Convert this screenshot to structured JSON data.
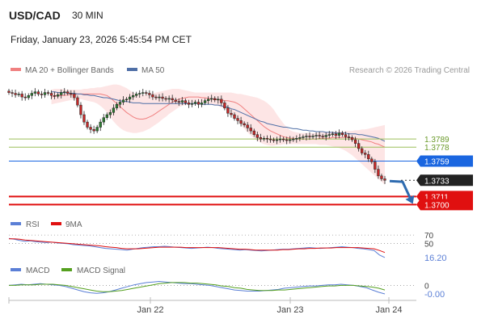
{
  "header": {
    "symbol": "USD/CAD",
    "interval": "30 MIN",
    "datetime": "Friday, January 23, 2026 5:45:54 PM CET"
  },
  "legend": {
    "ma20": "MA 20 + Bollinger Bands",
    "ma50": "MA 50",
    "credit": "Research © 2026 Trading Central",
    "rsi": "RSI",
    "rsi_ma": "9MA",
    "macd": "MACD",
    "macd_signal": "MACD Signal"
  },
  "colors": {
    "candle_up": "#2e7d32",
    "candle_down": "#c62828",
    "ma20": "#f08080",
    "bollinger_fill": "#fde0e0",
    "ma50": "#4f6fa6",
    "support_red": "#e01010",
    "current_blue": "#1a66e0",
    "resistance_green": "#9cbf5a",
    "price_tag_dark": "#222222",
    "rsi": "#5b7fd6",
    "rsi_ma": "#e01010",
    "macd": "#5b7fd6",
    "macd_signal": "#55a020",
    "arrow": "#2e6bb0"
  },
  "chart_data": [
    {
      "type": "candlestick",
      "title": "USD/CAD 30 MIN",
      "x_ticks": [
        "Jan 22",
        "Jan 23",
        "Jan 24"
      ],
      "ylim": [
        1.3695,
        1.3868
      ],
      "closes": [
        1.3852,
        1.3851,
        1.3849,
        1.385,
        1.3846,
        1.3845,
        1.3848,
        1.3851,
        1.3853,
        1.385,
        1.3849,
        1.3852,
        1.3851,
        1.3848,
        1.3847,
        1.3849,
        1.3852,
        1.3853,
        1.3851,
        1.385,
        1.3845,
        1.3835,
        1.3822,
        1.3812,
        1.3805,
        1.3802,
        1.38,
        1.3805,
        1.3812,
        1.3818,
        1.3822,
        1.3825,
        1.3831,
        1.3836,
        1.3839,
        1.3842,
        1.3843,
        1.3846,
        1.3848,
        1.385,
        1.3851,
        1.3852,
        1.3851,
        1.3849,
        1.3846,
        1.3845,
        1.3846,
        1.3844,
        1.3843,
        1.3844,
        1.3842,
        1.384,
        1.3839,
        1.3841,
        1.3838,
        1.3836,
        1.3837,
        1.3839,
        1.3836,
        1.3838,
        1.3841,
        1.3843,
        1.3844,
        1.3842,
        1.3843,
        1.3838,
        1.3831,
        1.3824,
        1.3822,
        1.3817,
        1.3814,
        1.381,
        1.3808,
        1.3804,
        1.38,
        1.3795,
        1.3791,
        1.3789,
        1.379,
        1.3789,
        1.3788,
        1.3787,
        1.3788,
        1.3789,
        1.3788,
        1.3787,
        1.3788,
        1.3789,
        1.379,
        1.3791,
        1.3792,
        1.3793,
        1.3792,
        1.3793,
        1.3794,
        1.3793,
        1.3792,
        1.3794,
        1.3795,
        1.3796,
        1.3794,
        1.3797,
        1.3795,
        1.3792,
        1.3791,
        1.3788,
        1.3783,
        1.3776,
        1.377,
        1.3768,
        1.3762,
        1.3758,
        1.3748,
        1.3739,
        1.3735,
        1.3733
      ],
      "indicators": {
        "ma20": [
          1.3846,
          1.3847,
          1.3848,
          1.3848,
          1.3848,
          1.3849,
          1.3849,
          1.3849,
          1.385,
          1.385,
          1.385,
          1.385,
          1.385,
          1.385,
          1.385,
          1.385,
          1.3849,
          1.3848,
          1.3845,
          1.3841,
          1.3837,
          1.3833,
          1.3829,
          1.3825,
          1.3822,
          1.3819,
          1.3817,
          1.3816,
          1.3816,
          1.3817,
          1.3819,
          1.3821,
          1.3824,
          1.3827,
          1.383,
          1.3833,
          1.3836,
          1.3839,
          1.3841,
          1.3843,
          1.3844,
          1.3845,
          1.3846,
          1.3846,
          1.3846,
          1.3846,
          1.3845,
          1.3845,
          1.3844,
          1.3843,
          1.3843,
          1.3842,
          1.3842,
          1.3841,
          1.3841,
          1.384,
          1.3839,
          1.3837,
          1.3834,
          1.383,
          1.3826,
          1.3822,
          1.3818,
          1.3814,
          1.381,
          1.3806,
          1.3803,
          1.38,
          1.3798,
          1.3796,
          1.3794,
          1.3792,
          1.3791,
          1.379,
          1.379,
          1.3789,
          1.3789,
          1.3789,
          1.3789,
          1.3789,
          1.3789,
          1.3789,
          1.379,
          1.379,
          1.379,
          1.379,
          1.3791,
          1.3791,
          1.3791,
          1.3791,
          1.3791,
          1.3791,
          1.379,
          1.379,
          1.3789,
          1.3788,
          1.3787,
          1.3786,
          1.3785,
          1.3783,
          1.3782,
          1.378,
          1.3778
        ],
        "bollinger_upper": [
          1.3856,
          1.3857,
          1.3857,
          1.3857,
          1.3856,
          1.3856,
          1.3856,
          1.3856,
          1.3856,
          1.3856,
          1.3857,
          1.3857,
          1.3858,
          1.3858,
          1.3859,
          1.3859,
          1.386,
          1.3861,
          1.3862,
          1.3863,
          1.3863,
          1.3862,
          1.386,
          1.3858,
          1.3855,
          1.3852,
          1.385,
          1.3849,
          1.3849,
          1.3849,
          1.385,
          1.3851,
          1.3852,
          1.3853,
          1.3854,
          1.3855,
          1.3856,
          1.3857,
          1.3857,
          1.3857,
          1.3856,
          1.3855,
          1.3854,
          1.3853,
          1.3852,
          1.3852,
          1.3852,
          1.3852,
          1.3852,
          1.3852,
          1.3852,
          1.3852,
          1.3852,
          1.3852,
          1.3852,
          1.3852,
          1.3851,
          1.385,
          1.385,
          1.3849,
          1.3848,
          1.3847,
          1.3846,
          1.3845,
          1.3843,
          1.3841,
          1.3838,
          1.3834,
          1.3829,
          1.3822,
          1.3816,
          1.381,
          1.3805,
          1.3801,
          1.3799,
          1.3798,
          1.3797,
          1.3797,
          1.3797,
          1.3797,
          1.3797,
          1.3797,
          1.3798,
          1.3798,
          1.3798,
          1.3798,
          1.3799,
          1.3799,
          1.3799,
          1.3799,
          1.38,
          1.38,
          1.38,
          1.3801,
          1.3801,
          1.3802,
          1.3802,
          1.3803,
          1.3804,
          1.3805,
          1.3806,
          1.3807,
          1.3808
        ],
        "bollinger_lower": [
          1.3836,
          1.3837,
          1.3838,
          1.3839,
          1.384,
          1.3841,
          1.3842,
          1.3842,
          1.3843,
          1.3843,
          1.3842,
          1.3841,
          1.384,
          1.3839,
          1.3837,
          1.3834,
          1.383,
          1.3825,
          1.3819,
          1.3813,
          1.3808,
          1.3804,
          1.3801,
          1.3799,
          1.3798,
          1.3797,
          1.3797,
          1.3798,
          1.3799,
          1.3801,
          1.3803,
          1.3806,
          1.3809,
          1.3812,
          1.3816,
          1.3819,
          1.3823,
          1.3826,
          1.3829,
          1.3832,
          1.3834,
          1.3835,
          1.3837,
          1.3838,
          1.3839,
          1.3839,
          1.3839,
          1.3838,
          1.3837,
          1.3836,
          1.3835,
          1.3834,
          1.3832,
          1.383,
          1.3827,
          1.3823,
          1.3818,
          1.3813,
          1.3808,
          1.3803,
          1.3798,
          1.3794,
          1.379,
          1.3787,
          1.3784,
          1.3782,
          1.3781,
          1.378,
          1.378,
          1.3781,
          1.3781,
          1.3782,
          1.3782,
          1.3782,
          1.3782,
          1.3782,
          1.3782,
          1.3782,
          1.3782,
          1.3782,
          1.3782,
          1.3782,
          1.3781,
          1.3781,
          1.3781,
          1.378,
          1.3779,
          1.3778,
          1.3777,
          1.3775,
          1.3773,
          1.377,
          1.3767,
          1.3763,
          1.3759,
          1.3755,
          1.3751,
          1.3747,
          1.3743,
          1.3739,
          1.3735,
          1.3731,
          1.3727
        ],
        "ma50": [
          1.3853,
          1.3853,
          1.3852,
          1.3852,
          1.3852,
          1.3851,
          1.3851,
          1.3851,
          1.385,
          1.385,
          1.3849,
          1.3849,
          1.3848,
          1.3848,
          1.3847,
          1.3846,
          1.3845,
          1.3845,
          1.3844,
          1.3843,
          1.3842,
          1.3841,
          1.384,
          1.384,
          1.3839,
          1.3838,
          1.3838,
          1.3838,
          1.3837,
          1.3837,
          1.3837,
          1.3837,
          1.3837,
          1.3837,
          1.3837,
          1.3837,
          1.3837,
          1.3837,
          1.3837,
          1.3837,
          1.3837,
          1.3837,
          1.3837,
          1.3837,
          1.3837,
          1.3837,
          1.3836,
          1.3836,
          1.3836,
          1.3836,
          1.3835,
          1.3835,
          1.3834,
          1.3833,
          1.3832,
          1.383,
          1.3829,
          1.3827,
          1.3825,
          1.3823,
          1.3821,
          1.3819,
          1.3817,
          1.3815,
          1.3813,
          1.3812,
          1.381,
          1.3809,
          1.3808,
          1.3807,
          1.3806,
          1.3805,
          1.3805,
          1.3804,
          1.3803,
          1.3803,
          1.3802,
          1.3801,
          1.3801,
          1.38,
          1.38,
          1.3799,
          1.3799,
          1.3799,
          1.3798,
          1.3798,
          1.3798,
          1.3797,
          1.3797,
          1.3797,
          1.3797,
          1.3796,
          1.3796,
          1.3796,
          1.3795,
          1.3795,
          1.3794,
          1.3793,
          1.3792,
          1.3791,
          1.379,
          1.3788,
          1.3786
        ]
      },
      "levels": [
        {
          "value": 1.3789,
          "label": "1.3789",
          "kind": "resistance"
        },
        {
          "value": 1.3778,
          "label": "1.3778",
          "kind": "resistance"
        },
        {
          "value": 1.3759,
          "label": "1.3759",
          "kind": "pivot"
        },
        {
          "value": 1.3733,
          "label": "1.3733",
          "kind": "last"
        },
        {
          "value": 1.3711,
          "label": "1.3711",
          "kind": "support"
        },
        {
          "value": 1.37,
          "label": "1.3700",
          "kind": "support"
        }
      ],
      "forecast_arrow": {
        "from": 1.3733,
        "to": 1.3705,
        "direction": "down"
      }
    },
    {
      "type": "line",
      "title": "RSI",
      "ylim": [
        10,
        80
      ],
      "reference_levels": [
        {
          "value": 70,
          "label": "70"
        },
        {
          "value": 50,
          "label": "50"
        }
      ],
      "last_value_label": "16.20",
      "series": [
        {
          "name": "RSI",
          "values": [
            62,
            60,
            57,
            55,
            56,
            54,
            53,
            52,
            53,
            51,
            50,
            49,
            47,
            46,
            45,
            44,
            42,
            40,
            38,
            37,
            36,
            35,
            34,
            36,
            38,
            40,
            41,
            42,
            42,
            43,
            42,
            41,
            40,
            39,
            38,
            39,
            40,
            41,
            40,
            38,
            37,
            36,
            35,
            34,
            35,
            34,
            33,
            32,
            33,
            34,
            35,
            36,
            36,
            37,
            38,
            39,
            40,
            39,
            38,
            39,
            40,
            41,
            42,
            41,
            40,
            38,
            37,
            35,
            33,
            22,
            16
          ]
        },
        {
          "name": "9MA",
          "values": [
            61,
            61,
            60,
            58,
            57,
            56,
            55,
            54,
            53,
            52,
            51,
            50,
            49,
            48,
            47,
            46,
            45,
            44,
            42,
            41,
            40,
            38,
            37,
            37,
            37,
            38,
            39,
            40,
            41,
            41,
            41,
            41,
            41,
            40,
            40,
            40,
            40,
            40,
            40,
            40,
            39,
            38,
            37,
            36,
            36,
            35,
            34,
            34,
            34,
            34,
            34,
            35,
            35,
            36,
            37,
            37,
            38,
            38,
            39,
            39,
            39,
            40,
            40,
            40,
            40,
            40,
            39,
            38,
            37,
            33,
            28
          ]
        }
      ]
    },
    {
      "type": "line",
      "title": "MACD",
      "ylim": [
        -0.0025,
        0.0012
      ],
      "reference_levels": [
        {
          "value": 0,
          "label": "0"
        }
      ],
      "last_value_label": "-0.00",
      "series": [
        {
          "name": "MACD",
          "values": [
            0.0,
            0.0001,
            0.0002,
            0.0001,
            0.0002,
            0.0003,
            0.0002,
            0.0001,
            0.0,
            -0.0002,
            -0.0005,
            -0.0008,
            -0.0011,
            -0.0013,
            -0.0014,
            -0.0013,
            -0.0011,
            -0.0008,
            -0.0005,
            -0.0002,
            0.0001,
            0.0003,
            0.0005,
            0.0006,
            0.0007,
            0.0006,
            0.0005,
            0.0004,
            0.0003,
            0.0003,
            0.0002,
            0.0001,
            0.0,
            -0.0002,
            -0.0004,
            -0.0006,
            -0.0008,
            -0.0009,
            -0.001,
            -0.001,
            -0.001,
            -0.0009,
            -0.0008,
            -0.0007,
            -0.0005,
            -0.0004,
            -0.0003,
            -0.0002,
            -0.0001,
            -0.0001,
            0.0,
            0.0001,
            0.0001,
            0.0002,
            0.0001,
            0.0,
            -0.0002,
            -0.0004,
            -0.0008,
            -0.0012,
            -0.0015
          ]
        },
        {
          "name": "MACD Signal",
          "values": [
            0.0,
            0.0,
            0.0001,
            0.0001,
            0.0001,
            0.0002,
            0.0002,
            0.0002,
            0.0001,
            0.0,
            -0.0002,
            -0.0004,
            -0.0006,
            -0.0008,
            -0.001,
            -0.0011,
            -0.0011,
            -0.001,
            -0.0009,
            -0.0007,
            -0.0005,
            -0.0003,
            -0.0001,
            0.0001,
            0.0003,
            0.0004,
            0.0005,
            0.0005,
            0.0005,
            0.0004,
            0.0004,
            0.0003,
            0.0002,
            0.0001,
            -0.0001,
            -0.0002,
            -0.0004,
            -0.0005,
            -0.0007,
            -0.0008,
            -0.0009,
            -0.0009,
            -0.0009,
            -0.0008,
            -0.0008,
            -0.0007,
            -0.0006,
            -0.0005,
            -0.0004,
            -0.0003,
            -0.0002,
            -0.0001,
            -0.0001,
            0.0,
            0.0,
            0.0,
            -0.0001,
            -0.0002,
            -0.0003,
            -0.0005,
            -0.0008
          ]
        }
      ]
    }
  ]
}
